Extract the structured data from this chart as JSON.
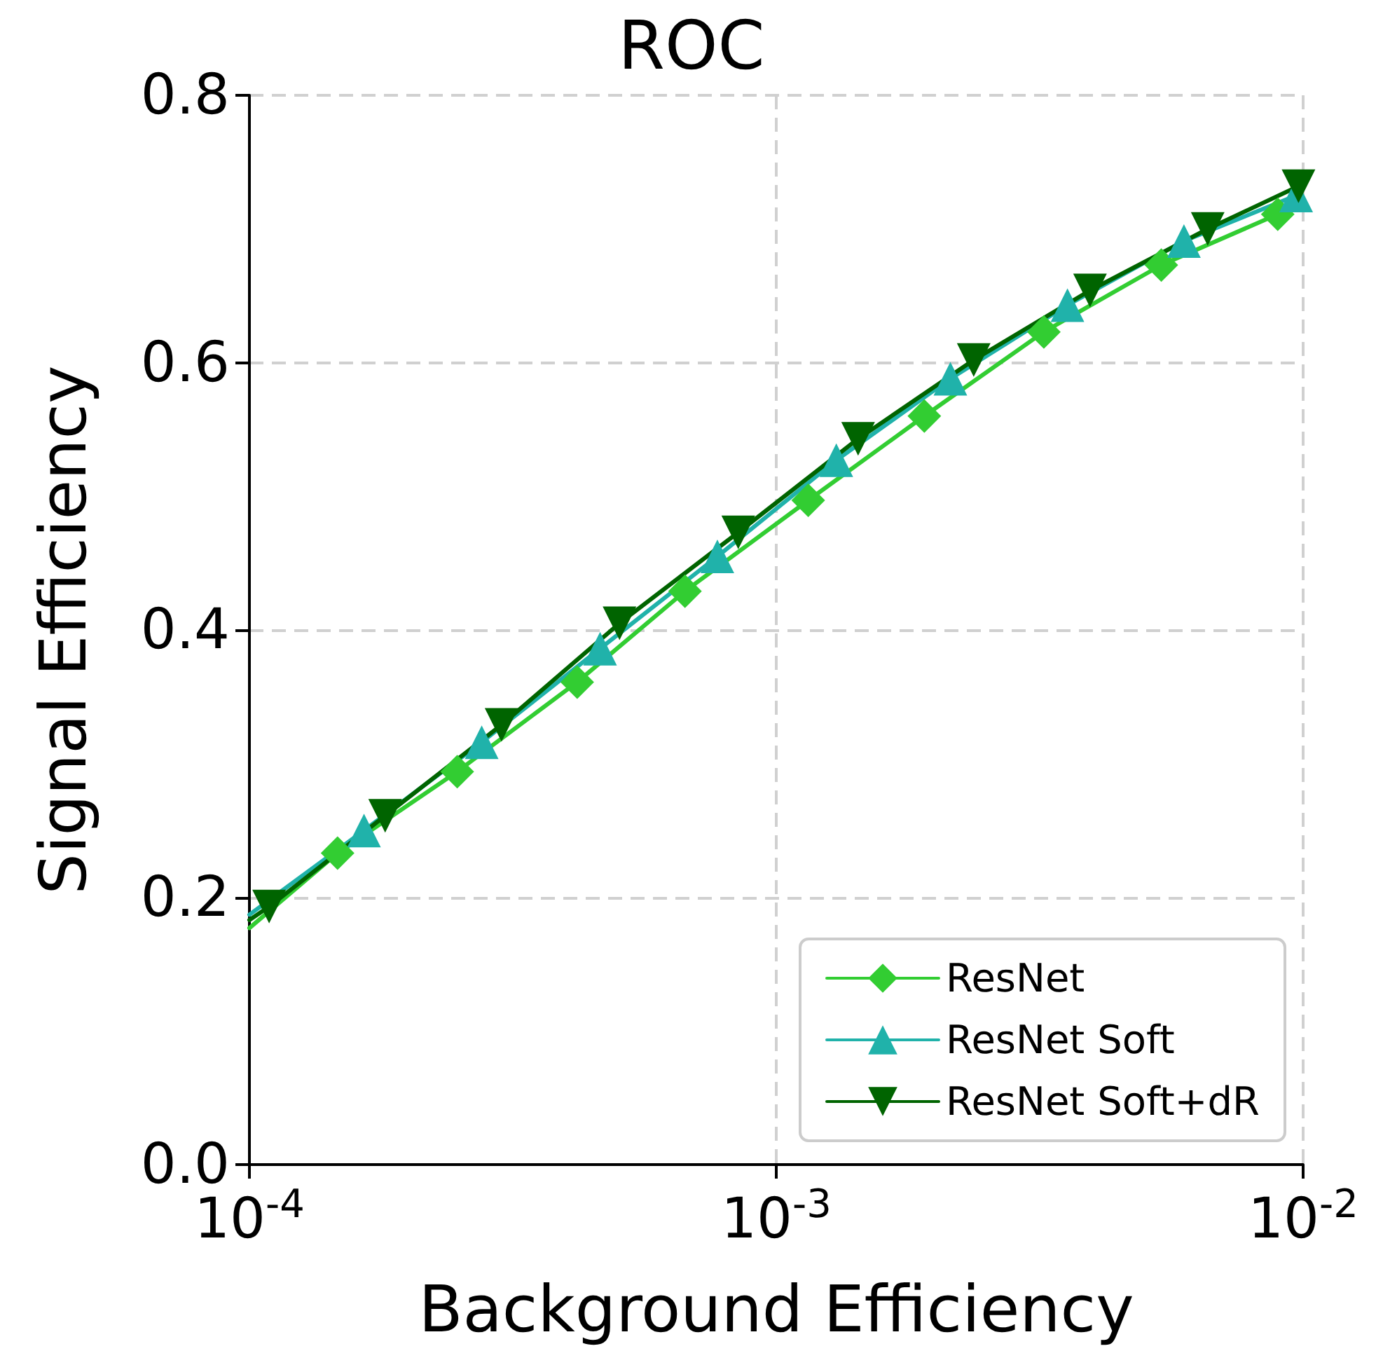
{
  "chart_data": {
    "type": "line",
    "title": "ROC",
    "xlabel": "Background Efficiency",
    "ylabel": "Signal Efficiency",
    "log": "x",
    "xlim": [
      0.0001,
      0.01
    ],
    "ylim": [
      0,
      0.8
    ],
    "xticks": [
      {
        "value": 0.0001,
        "label": "10$^{-4}$"
      },
      {
        "value": 0.001,
        "label": "10$^{-3}$"
      },
      {
        "value": 0.01,
        "label": "10$^{-2}$"
      }
    ],
    "yticks": [
      {
        "value": 0,
        "label": "0.0"
      },
      0.2,
      0.4,
      0.6,
      0.8
    ],
    "grid": true,
    "legend": "bottom right",
    "line_style": "solid",
    "series": [
      {
        "name": "ResNet",
        "color": "#32cd32",
        "marker": "diamond",
        "x": [
          0.0001,
          0.000147,
          0.000248,
          0.000419,
          0.000671,
          0.00115,
          0.00191,
          0.00322,
          0.00538,
          0.00895
        ],
        "values": [
          0.177,
          0.233,
          0.294,
          0.361,
          0.429,
          0.497,
          0.56,
          0.623,
          0.673,
          0.711
        ]
      },
      {
        "name": "ResNet Soft",
        "color": "#20b2aa",
        "marker": "triangle",
        "x": [
          0.0001,
          0.000165,
          0.000276,
          0.000463,
          0.000773,
          0.0013,
          0.00214,
          0.00357,
          0.00594,
          0.0097
        ],
        "values": [
          0.187,
          0.25,
          0.316,
          0.386,
          0.455,
          0.527,
          0.588,
          0.643,
          0.691,
          0.725
        ]
      },
      {
        "name": "ResNet Soft+dR",
        "color": "#006400",
        "marker": "triangle_down",
        "x": [
          0.0001,
          0.000109,
          0.000181,
          0.000301,
          0.000504,
          0.000847,
          0.00143,
          0.00237,
          0.00394,
          0.00659,
          0.0098
        ],
        "values": [
          0.183,
          0.193,
          0.261,
          0.329,
          0.405,
          0.473,
          0.543,
          0.602,
          0.654,
          0.7,
          0.732
        ]
      }
    ]
  }
}
